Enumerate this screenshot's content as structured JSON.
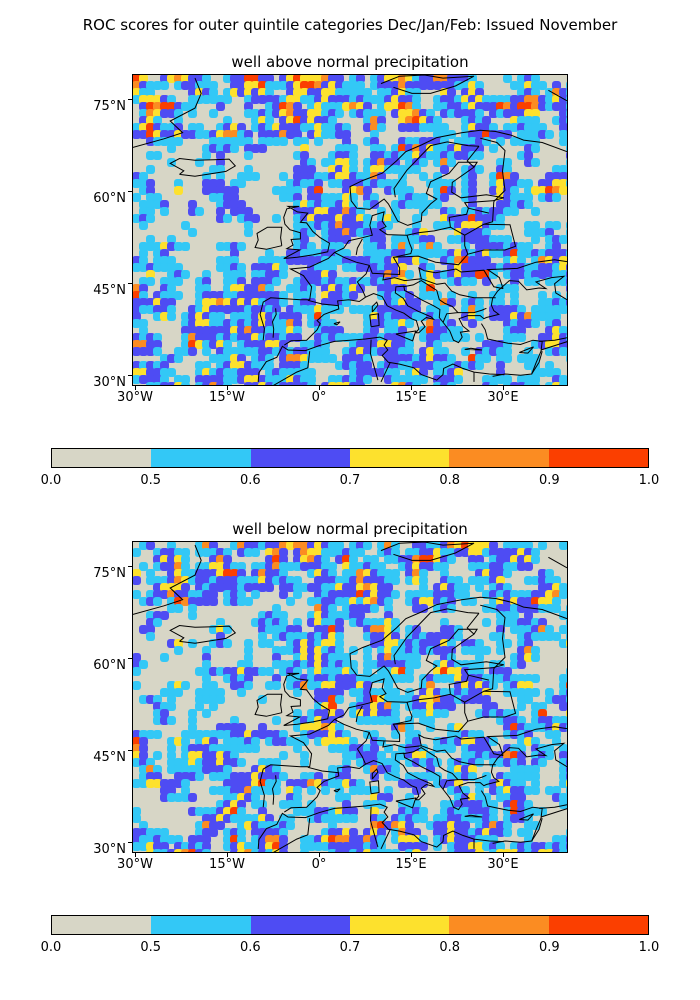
{
  "figure": {
    "title": "ROC scores for outer quintile categories Dec/Jan/Feb: Issued November"
  },
  "panels": [
    {
      "title": "well above normal precipitation"
    },
    {
      "title": "well below normal precipitation"
    }
  ],
  "axes": {
    "y_ticks": [
      "75°N",
      "60°N",
      "45°N",
      "30°N"
    ],
    "x_ticks": [
      "30°W",
      "15°W",
      "0°",
      "15°E",
      "30°E"
    ]
  },
  "colorbar": {
    "bounds": [
      "0.0",
      "0.5",
      "0.6",
      "0.7",
      "0.8",
      "0.9",
      "1.0"
    ],
    "colors": [
      "#d7d6c6",
      "#33c8f6",
      "#4e4cf3",
      "#fde12d",
      "#fb8c22",
      "#fb3f00"
    ]
  },
  "map_style": {
    "background_color": "#d7d6c6",
    "coastline_color": "#000000"
  }
}
